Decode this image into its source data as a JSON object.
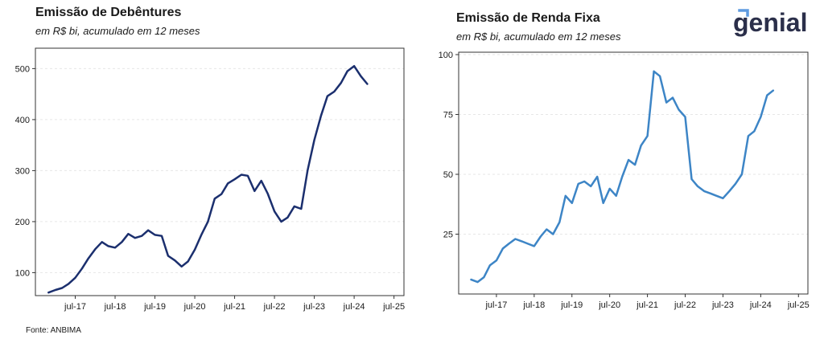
{
  "brand": {
    "logo_text": "genial",
    "logo_color": "#2b2f4a",
    "accent_color": "#5f9be0"
  },
  "source_note": "Fonte: ANBIMA",
  "chart_data": [
    {
      "type": "line",
      "title": "Emissão de Debêntures",
      "subtitle": "em R$ bi, acumulado em 12 meses",
      "xlabel": "",
      "ylabel": "",
      "line_color": "#1b2f6e",
      "grid": "horizontal dashed",
      "x_ticks": [
        "jul-17",
        "jul-18",
        "jul-19",
        "jul-20",
        "jul-21",
        "jul-22",
        "jul-23",
        "jul-24",
        "jul-25"
      ],
      "y_ticks": [
        100,
        200,
        300,
        400,
        500
      ],
      "ylim": [
        55,
        540
      ],
      "xlim": [
        2016.5,
        2025.75
      ],
      "series": [
        {
          "x": [
            2016.83,
            2017.0,
            2017.17,
            2017.33,
            2017.5,
            2017.67,
            2017.83,
            2018.0,
            2018.17,
            2018.33,
            2018.5,
            2018.67,
            2018.83,
            2019.0,
            2019.17,
            2019.33,
            2019.5,
            2019.67,
            2019.83,
            2020.0,
            2020.17,
            2020.33,
            2020.5,
            2020.67,
            2020.83,
            2021.0,
            2021.17,
            2021.33,
            2021.5,
            2021.67,
            2021.83,
            2022.0,
            2022.17,
            2022.33,
            2022.5,
            2022.67,
            2022.83,
            2023.0,
            2023.17,
            2023.33,
            2023.5,
            2023.67,
            2023.83,
            2024.0,
            2024.17,
            2024.33,
            2024.5,
            2024.67,
            2024.83
          ],
          "y": [
            61,
            66,
            70,
            78,
            90,
            108,
            128,
            146,
            160,
            152,
            149,
            160,
            176,
            168,
            172,
            183,
            174,
            172,
            133,
            124,
            112,
            122,
            145,
            175,
            200,
            245,
            254,
            275,
            283,
            292,
            290,
            260,
            280,
            255,
            220,
            200,
            208,
            230,
            225,
            300,
            360,
            408,
            446,
            455,
            472,
            495,
            505,
            485,
            470
          ]
        }
      ]
    },
    {
      "type": "line",
      "title": "Emissão de Renda Fixa",
      "subtitle": "em R$ bi, acumulado em 12 meses",
      "xlabel": "",
      "ylabel": "",
      "line_color": "#3d85c6",
      "grid": "horizontal dashed",
      "x_ticks": [
        "jul-17",
        "jul-18",
        "jul-19",
        "jul-20",
        "jul-21",
        "jul-22",
        "jul-23",
        "jul-24",
        "jul-25"
      ],
      "y_ticks": [
        25,
        50,
        75,
        100
      ],
      "ylim": [
        0,
        101
      ],
      "xlim": [
        2016.5,
        2025.75
      ],
      "series": [
        {
          "x": [
            2016.83,
            2017.0,
            2017.17,
            2017.33,
            2017.5,
            2017.67,
            2017.83,
            2018.0,
            2018.17,
            2018.33,
            2018.5,
            2018.67,
            2018.83,
            2019.0,
            2019.17,
            2019.33,
            2019.5,
            2019.67,
            2019.83,
            2020.0,
            2020.17,
            2020.33,
            2020.5,
            2020.67,
            2020.83,
            2021.0,
            2021.17,
            2021.33,
            2021.5,
            2021.67,
            2021.83,
            2022.0,
            2022.17,
            2022.33,
            2022.5,
            2022.67,
            2022.83,
            2023.0,
            2023.17,
            2023.33,
            2023.5,
            2023.67,
            2023.83,
            2024.0,
            2024.17,
            2024.33,
            2024.5,
            2024.67,
            2024.83
          ],
          "y": [
            6,
            5,
            7,
            12,
            14,
            19,
            21,
            23,
            22,
            21,
            20,
            24,
            27,
            25,
            30,
            41,
            38,
            46,
            47,
            45,
            49,
            38,
            44,
            41,
            49,
            56,
            54,
            62,
            66,
            93,
            91,
            80,
            82,
            77,
            74,
            48,
            45,
            43,
            42,
            41,
            40,
            43,
            46,
            50,
            66,
            68,
            74,
            83,
            85
          ]
        }
      ]
    }
  ]
}
